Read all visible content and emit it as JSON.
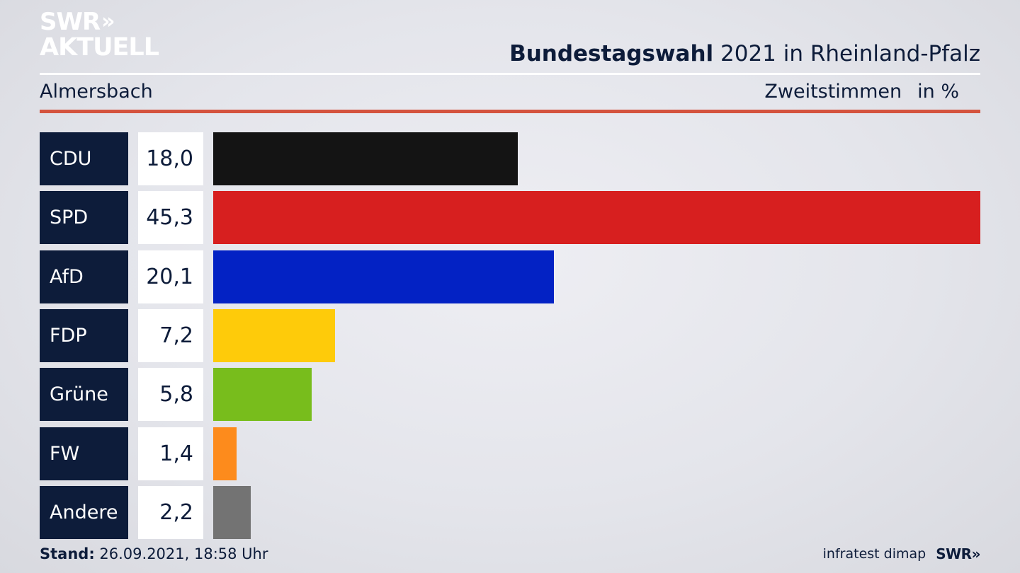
{
  "logo": {
    "line1": "SWR",
    "chevrons": "»",
    "line2": "AKTUELL"
  },
  "header": {
    "title_bold": "Bundestagswahl",
    "title_rest": " 2021 in Rheinland-Pfalz"
  },
  "subheader": {
    "region": "Almersbach",
    "votes_label": "Zweitstimmen",
    "unit": "in %"
  },
  "chart_data": {
    "type": "bar",
    "orientation": "horizontal",
    "categories": [
      "CDU",
      "SPD",
      "AfD",
      "FDP",
      "Grüne",
      "FW",
      "Andere"
    ],
    "values": [
      18.0,
      45.3,
      20.1,
      7.2,
      5.8,
      1.4,
      2.2
    ],
    "value_labels": [
      "18,0",
      "45,3",
      "20,1",
      "7,2",
      "5,8",
      "1,4",
      "2,2"
    ],
    "colors": [
      "#141414",
      "#d71f1f",
      "#0322c4",
      "#fecb0a",
      "#78bd1c",
      "#fd8b1c",
      "#737373"
    ],
    "xlim": [
      0,
      45.3
    ],
    "grid": false
  },
  "footer": {
    "stand_label": "Stand:",
    "stand_value": " 26.09.2021, 18:58 Uhr",
    "source": "infratest dimap",
    "brand": "SWR»"
  }
}
